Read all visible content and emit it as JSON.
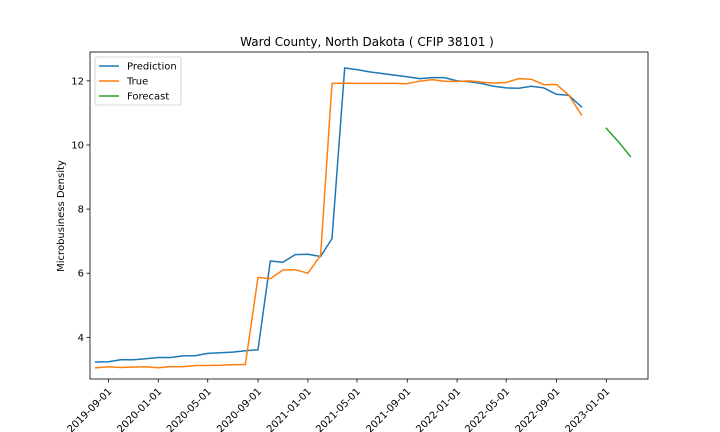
{
  "chart_data": {
    "type": "line",
    "title": "Ward County, North Dakota ( CFIP 38101 )",
    "xlabel": "",
    "ylabel": "Microbusiness Density",
    "x_ticks": [
      "2019-09-01",
      "2020-01-01",
      "2020-05-01",
      "2020-09-01",
      "2021-01-01",
      "2021-05-01",
      "2021-09-01",
      "2022-01-01",
      "2022-05-01",
      "2022-09-01",
      "2023-01-01"
    ],
    "y_ticks": [
      4,
      6,
      8,
      10,
      12
    ],
    "xlim": [
      "2019-07-18",
      "2023-04-13"
    ],
    "ylim": [
      2.7,
      12.9
    ],
    "grid": false,
    "legend_position": "top-left",
    "series": [
      {
        "name": "Prediction",
        "color": "#1f77b4",
        "x": [
          "2019-08-01",
          "2019-09-01",
          "2019-10-01",
          "2019-11-01",
          "2019-12-01",
          "2020-01-01",
          "2020-02-01",
          "2020-03-01",
          "2020-04-01",
          "2020-05-01",
          "2020-06-01",
          "2020-07-01",
          "2020-08-01",
          "2020-09-01",
          "2020-10-01",
          "2020-11-01",
          "2020-12-01",
          "2021-01-01",
          "2021-02-01",
          "2021-03-01",
          "2021-04-01",
          "2021-05-01",
          "2021-06-01",
          "2021-07-01",
          "2021-08-01",
          "2021-09-01",
          "2021-10-01",
          "2021-11-01",
          "2021-12-01",
          "2022-01-01",
          "2022-02-01",
          "2022-03-01",
          "2022-04-01",
          "2022-05-01",
          "2022-06-01",
          "2022-07-01",
          "2022-08-01",
          "2022-09-01",
          "2022-10-01",
          "2022-11-01",
          "2022-12-01"
        ],
        "y": [
          3.23,
          3.24,
          3.3,
          3.3,
          3.33,
          3.37,
          3.37,
          3.42,
          3.43,
          3.5,
          3.52,
          3.54,
          3.58,
          3.61,
          6.38,
          6.34,
          6.58,
          6.59,
          6.52,
          7.08,
          12.4,
          12.35,
          12.28,
          12.23,
          12.18,
          12.13,
          12.07,
          12.1,
          12.1,
          12.0,
          11.97,
          11.92,
          11.83,
          11.78,
          11.77,
          11.83,
          11.78,
          11.58,
          11.55,
          11.19,
          null
        ]
      },
      {
        "name": "True",
        "color": "#ff7f0e",
        "x": [
          "2019-08-01",
          "2019-09-01",
          "2019-10-01",
          "2019-11-01",
          "2019-12-01",
          "2020-01-01",
          "2020-02-01",
          "2020-03-01",
          "2020-04-01",
          "2020-05-01",
          "2020-06-01",
          "2020-07-01",
          "2020-08-01",
          "2020-09-01",
          "2020-10-01",
          "2020-11-01",
          "2020-12-01",
          "2021-01-01",
          "2021-02-01",
          "2021-03-01",
          "2021-04-01",
          "2021-05-01",
          "2021-06-01",
          "2021-07-01",
          "2021-08-01",
          "2021-09-01",
          "2021-10-01",
          "2021-11-01",
          "2021-12-01",
          "2022-01-01",
          "2022-02-01",
          "2022-03-01",
          "2022-04-01",
          "2022-05-01",
          "2022-06-01",
          "2022-07-01",
          "2022-08-01",
          "2022-09-01",
          "2022-10-01",
          "2022-11-01",
          "2022-12-01"
        ],
        "y": [
          3.05,
          3.08,
          3.06,
          3.07,
          3.08,
          3.05,
          3.09,
          3.08,
          3.12,
          3.12,
          3.13,
          3.15,
          3.15,
          5.87,
          5.83,
          6.1,
          6.11,
          6.0,
          6.56,
          11.92,
          11.93,
          11.92,
          11.92,
          11.92,
          11.92,
          11.91,
          11.99,
          12.04,
          11.99,
          11.98,
          12.0,
          11.96,
          11.93,
          11.95,
          12.07,
          12.05,
          11.88,
          11.89,
          11.56,
          10.94,
          null
        ]
      },
      {
        "name": "Forecast",
        "color": "#2ca02c",
        "x": [
          "2022-12-01",
          "2023-01-01",
          "2023-02-01",
          "2023-03-01"
        ],
        "y": [
          null,
          10.52,
          10.08,
          9.64
        ]
      }
    ]
  }
}
